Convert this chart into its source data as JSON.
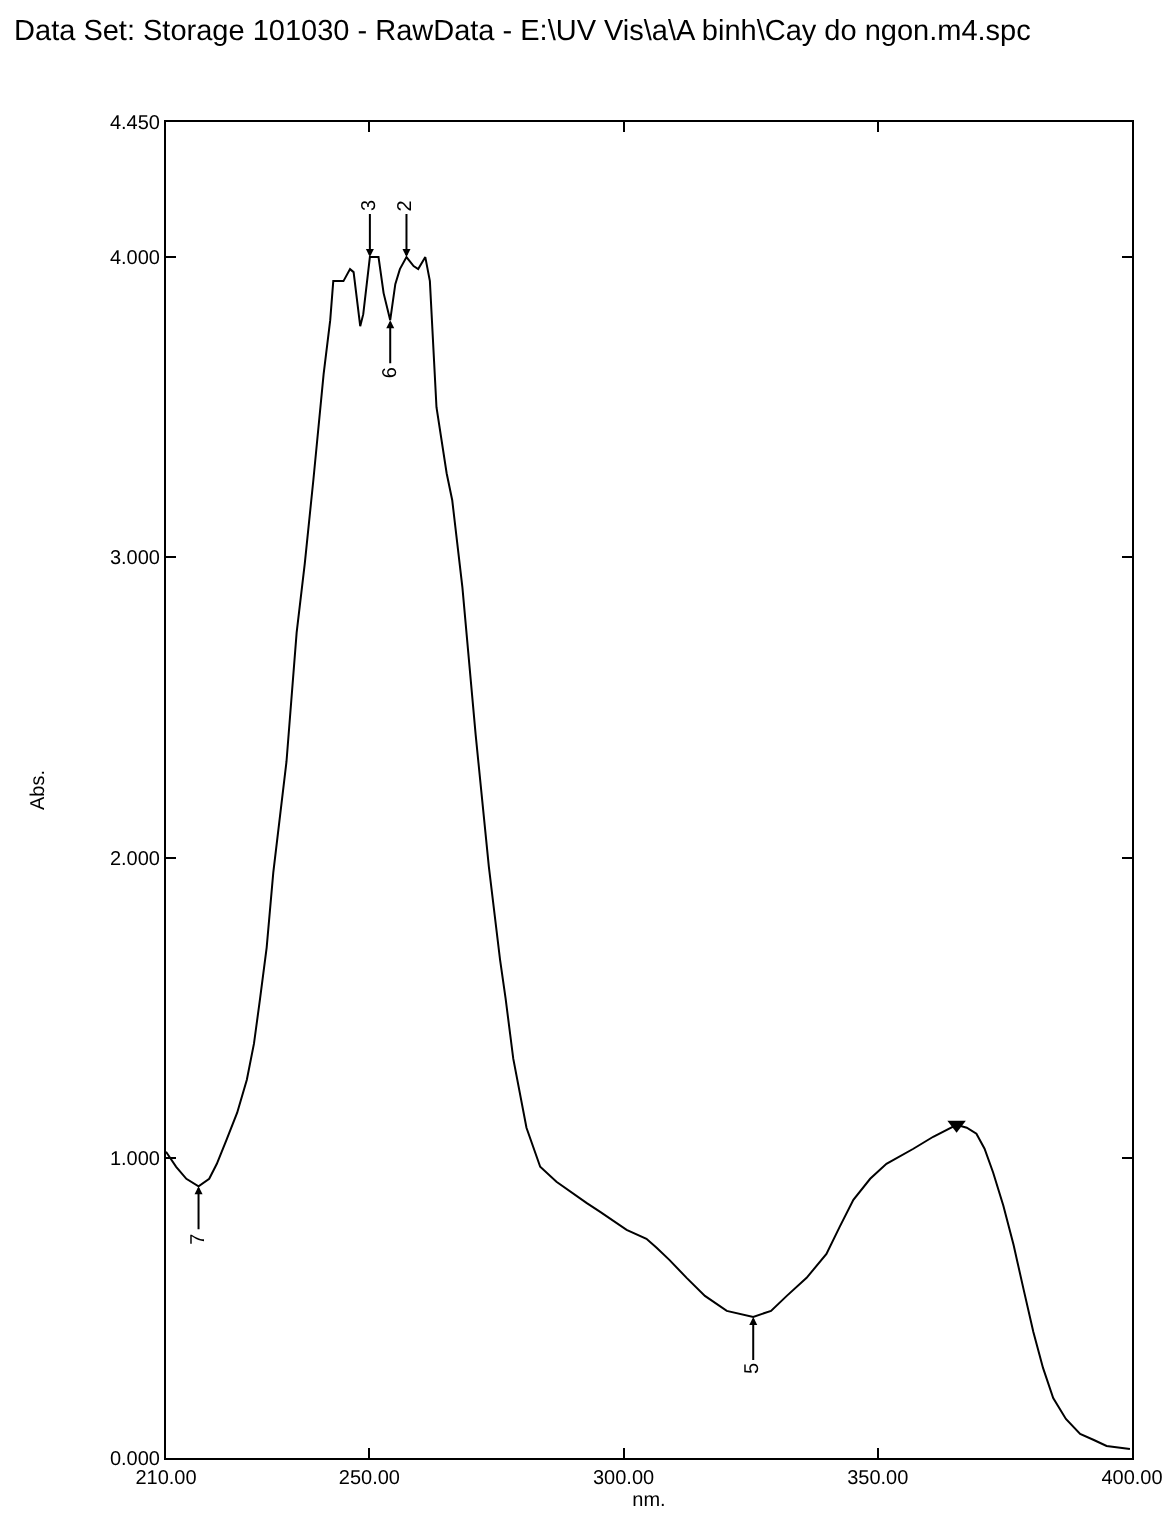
{
  "chart_data": {
    "type": "line",
    "title": "Data Set: Storage 101030 - RawData - E:\\UV Vis\\a\\A binh\\Cay do ngon.m4.spc",
    "xlabel": "nm.",
    "ylabel": "Abs.",
    "x": [
      210.0,
      212.0,
      214.0,
      216.4,
      218.5,
      220.0,
      221.9,
      224.0,
      225.9,
      227.3,
      228.5,
      229.8,
      231.1,
      233.7,
      235.7,
      237.3,
      239.0,
      241.0,
      242.3,
      242.9,
      244.9,
      246.2,
      246.9,
      248.2,
      248.8,
      250.1,
      251.8,
      252.8,
      254.1,
      255.1,
      256.0,
      257.3,
      258.7,
      259.6,
      261.0,
      261.9,
      263.2,
      265.2,
      266.3,
      268.3,
      270.9,
      273.5,
      275.7,
      276.8,
      278.3,
      280.9,
      283.6,
      286.8,
      292.7,
      295.4,
      300.6,
      304.5,
      306.5,
      309.0,
      312.4,
      316.0,
      320.3,
      325.5,
      329.0,
      332.1,
      336.0,
      339.9,
      342.5,
      345.2,
      348.5,
      351.7,
      357.0,
      360.9,
      365.5,
      367.5,
      369.4,
      371.0,
      372.7,
      374.7,
      376.7,
      378.7,
      380.6,
      382.5,
      384.5,
      387.0,
      389.8,
      392.5,
      395.0,
      399.6
    ],
    "series": [
      {
        "color": "#000000",
        "values": [
          1.02,
          0.97,
          0.93,
          0.905,
          0.93,
          0.98,
          1.06,
          1.15,
          1.26,
          1.38,
          1.53,
          1.7,
          1.95,
          2.32,
          2.75,
          2.98,
          3.26,
          3.61,
          3.79,
          3.92,
          3.92,
          3.96,
          3.95,
          3.77,
          3.81,
          4.0,
          4.0,
          3.88,
          3.79,
          3.91,
          3.96,
          4.0,
          3.97,
          3.96,
          4.0,
          3.92,
          3.5,
          3.28,
          3.19,
          2.9,
          2.41,
          1.97,
          1.66,
          1.53,
          1.33,
          1.1,
          0.97,
          0.92,
          0.85,
          0.82,
          0.76,
          0.73,
          0.7,
          0.66,
          0.6,
          0.54,
          0.49,
          0.47,
          0.49,
          0.54,
          0.6,
          0.68,
          0.77,
          0.86,
          0.93,
          0.98,
          1.03,
          1.07,
          1.11,
          1.1,
          1.08,
          1.03,
          0.95,
          0.84,
          0.71,
          0.56,
          0.42,
          0.3,
          0.2,
          0.13,
          0.08,
          0.06,
          0.04,
          0.03
        ]
      },
      {
        "type": "scatter",
        "color": "#000000",
        "marker": "triangle",
        "x": [
          365.5
        ],
        "values": [
          1.11
        ]
      }
    ],
    "annotations": [
      {
        "text": "7",
        "x": 216.4,
        "y": 0.905
      },
      {
        "text": "3",
        "x": 250.1,
        "y": 4.0
      },
      {
        "text": "6",
        "x": 254.1,
        "y": 3.79
      },
      {
        "text": "2",
        "x": 257.3,
        "y": 4.0
      },
      {
        "text": "5",
        "x": 325.5,
        "y": 0.47
      }
    ],
    "xlim": [
      210,
      400
    ],
    "xticks": [
      {
        "value": 210,
        "label": "210.00"
      },
      {
        "value": 250,
        "label": "250.00"
      },
      {
        "value": 300,
        "label": "300.00"
      },
      {
        "value": 350,
        "label": "350.00"
      },
      {
        "value": 400,
        "label": "400.00"
      }
    ],
    "ylim": [
      0,
      4.45
    ],
    "yticks": [
      {
        "value": 0,
        "label": "0.000"
      },
      {
        "value": 1,
        "label": "1.000"
      },
      {
        "value": 2,
        "label": "2.000"
      },
      {
        "value": 3,
        "label": "3.000"
      },
      {
        "value": 4,
        "label": "4.000"
      },
      {
        "value": 4.45,
        "label": "4.450"
      }
    ]
  }
}
